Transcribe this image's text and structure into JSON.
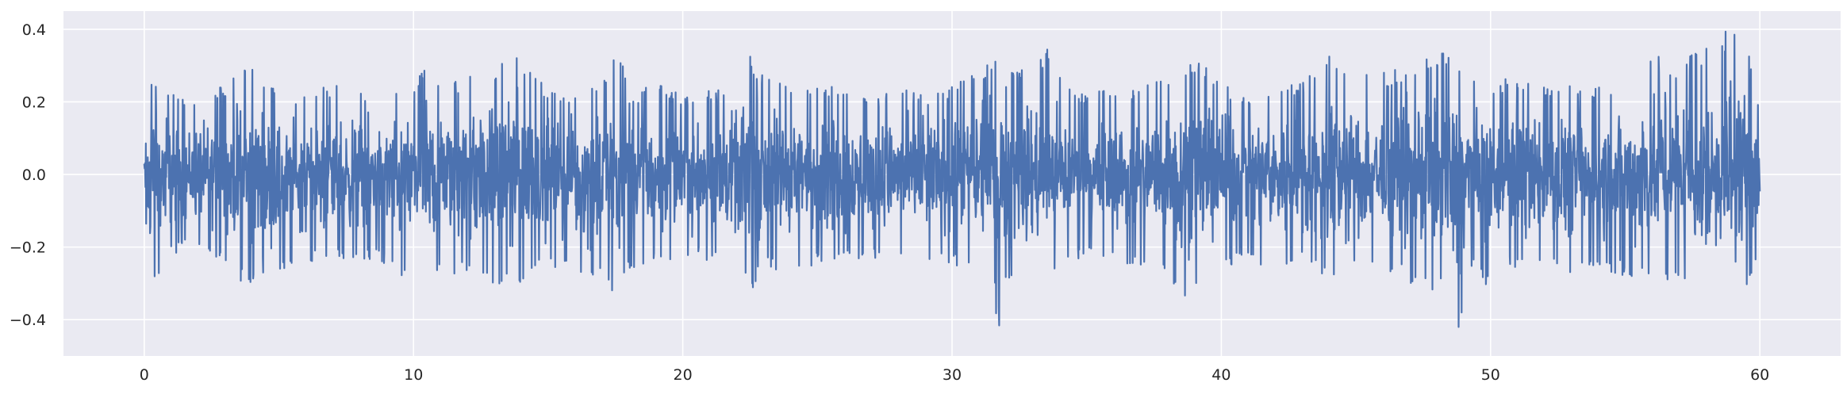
{
  "chart_data": {
    "type": "line",
    "title": "",
    "xlabel": "",
    "ylabel": "",
    "xlim": [
      -3,
      63
    ],
    "ylim": [
      -0.5,
      0.45
    ],
    "grid": true,
    "legend": "none",
    "x_ticks": [
      0,
      10,
      20,
      30,
      40,
      50,
      60
    ],
    "y_ticks": [
      -0.4,
      -0.2,
      0.0,
      0.2,
      0.4
    ],
    "x_tick_labels": [
      "0",
      "10",
      "20",
      "30",
      "40",
      "50",
      "60"
    ],
    "y_tick_labels": [
      "−0.4",
      "−0.2",
      "0.0",
      "0.2",
      "0.4"
    ],
    "colors": {
      "line": "#4c72b0",
      "plot_background": "#eaeaf2",
      "grid": "#ffffff"
    },
    "series": [
      {
        "x_range": [
          0,
          60
        ],
        "envelope_x": [
          0,
          0.3,
          1,
          2,
          3,
          3.8,
          4.5,
          5,
          6,
          7,
          8,
          9,
          10,
          10.5,
          11,
          12,
          13,
          13.7,
          14,
          15,
          16,
          17,
          17.6,
          18,
          19,
          20,
          21,
          22,
          22.5,
          23,
          24,
          25,
          26,
          27,
          28,
          29,
          30,
          31,
          31.8,
          32,
          33,
          33.5,
          34,
          35,
          36,
          37,
          38,
          38.5,
          39,
          40,
          41,
          42,
          43,
          44,
          45,
          46,
          47,
          48,
          48.7,
          49,
          50,
          51,
          52,
          53,
          54,
          55,
          56,
          57,
          58,
          58.5,
          59,
          59.5,
          60
        ],
        "envelope_max": [
          0.12,
          0.28,
          0.22,
          0.21,
          0.25,
          0.31,
          0.25,
          0.24,
          0.22,
          0.25,
          0.24,
          0.22,
          0.24,
          0.33,
          0.25,
          0.27,
          0.29,
          0.36,
          0.31,
          0.24,
          0.22,
          0.27,
          0.37,
          0.22,
          0.25,
          0.22,
          0.23,
          0.26,
          0.33,
          0.27,
          0.24,
          0.26,
          0.23,
          0.21,
          0.24,
          0.22,
          0.25,
          0.28,
          0.37,
          0.27,
          0.32,
          0.35,
          0.28,
          0.22,
          0.24,
          0.24,
          0.28,
          0.31,
          0.33,
          0.25,
          0.22,
          0.24,
          0.26,
          0.34,
          0.31,
          0.28,
          0.3,
          0.33,
          0.36,
          0.28,
          0.26,
          0.27,
          0.24,
          0.26,
          0.24,
          0.27,
          0.34,
          0.3,
          0.38,
          0.41,
          0.42,
          0.42,
          0.17
        ],
        "envelope_min": [
          -0.09,
          -0.33,
          -0.22,
          -0.2,
          -0.25,
          -0.32,
          -0.31,
          -0.28,
          -0.25,
          -0.24,
          -0.23,
          -0.25,
          -0.31,
          -0.29,
          -0.27,
          -0.28,
          -0.3,
          -0.39,
          -0.29,
          -0.26,
          -0.28,
          -0.3,
          -0.37,
          -0.26,
          -0.24,
          -0.23,
          -0.24,
          -0.26,
          -0.33,
          -0.27,
          -0.26,
          -0.25,
          -0.24,
          -0.23,
          -0.24,
          -0.26,
          -0.25,
          -0.28,
          -0.43,
          -0.3,
          -0.28,
          -0.32,
          -0.25,
          -0.23,
          -0.25,
          -0.25,
          -0.26,
          -0.37,
          -0.31,
          -0.27,
          -0.24,
          -0.26,
          -0.25,
          -0.29,
          -0.27,
          -0.26,
          -0.3,
          -0.33,
          -0.46,
          -0.43,
          -0.28,
          -0.26,
          -0.27,
          -0.27,
          -0.26,
          -0.28,
          -0.29,
          -0.3,
          -0.37,
          -0.33,
          -0.4,
          -0.36,
          -0.2
        ],
        "description_points": 4200
      }
    ]
  }
}
